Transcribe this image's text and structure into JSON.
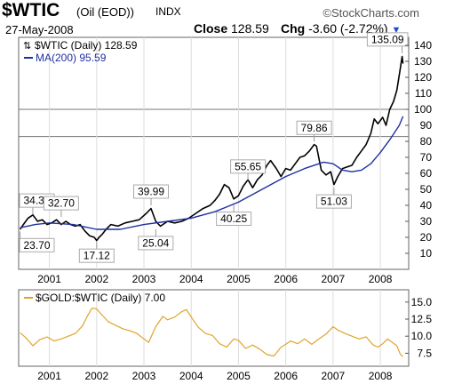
{
  "header": {
    "symbol": "$WTIC",
    "description": "(Oil (EOD))",
    "exchange": "INDX",
    "brand": "StockCharts.com",
    "date": "27-May-2008",
    "close_label": "Close",
    "close_value": "128.59",
    "chg_label": "Chg",
    "chg_value": "-3.60 (-2.72%)",
    "chg_arrow": "▼",
    "down_color": "#1a4ec8"
  },
  "chart_data": [
    {
      "type": "line",
      "legend": [
        {
          "label": "$WTIC (Daily) 128.59",
          "color": "#000000"
        },
        {
          "label": "MA(200) 95.59",
          "color": "#1f2f9f"
        }
      ],
      "x_tick_labels": [
        "2001",
        "2002",
        "2003",
        "2004",
        "2005",
        "2006",
        "2007",
        "2008"
      ],
      "y_tick_labels": [
        "10",
        "20",
        "30",
        "40",
        "50",
        "60",
        "70",
        "80",
        "90",
        "100",
        "110",
        "120",
        "130",
        "140"
      ],
      "y_ticks": [
        10,
        20,
        30,
        40,
        50,
        60,
        70,
        80,
        90,
        100,
        110,
        120,
        130,
        140
      ],
      "ylim": [
        0,
        145
      ],
      "xlim": [
        2000.35,
        2008.6
      ],
      "x_tick_values": [
        2001,
        2002,
        2003,
        2004,
        2005,
        2006,
        2007,
        2008
      ],
      "horizontal_lines": [
        100,
        83
      ],
      "series": [
        {
          "name": "$WTIC (Daily)",
          "color": "#000000",
          "points": [
            [
              2000.38,
              25
            ],
            [
              2000.45,
              28
            ],
            [
              2000.55,
              32
            ],
            [
              2000.65,
              34
            ],
            [
              2000.75,
              30
            ],
            [
              2000.85,
              31
            ],
            [
              2000.95,
              28
            ],
            [
              2001.05,
              29
            ],
            [
              2001.15,
              31
            ],
            [
              2001.25,
              28
            ],
            [
              2001.35,
              30
            ],
            [
              2001.45,
              28
            ],
            [
              2001.55,
              27
            ],
            [
              2001.65,
              28
            ],
            [
              2001.75,
              24
            ],
            [
              2001.85,
              21
            ],
            [
              2001.95,
              20
            ],
            [
              2002.0,
              18
            ],
            [
              2002.05,
              20
            ],
            [
              2002.12,
              22
            ],
            [
              2002.2,
              25
            ],
            [
              2002.3,
              28
            ],
            [
              2002.45,
              27
            ],
            [
              2002.6,
              29
            ],
            [
              2002.75,
              30
            ],
            [
              2002.9,
              31
            ],
            [
              2003.05,
              35
            ],
            [
              2003.15,
              38
            ],
            [
              2003.25,
              30
            ],
            [
              2003.35,
              27
            ],
            [
              2003.5,
              30
            ],
            [
              2003.65,
              29
            ],
            [
              2003.8,
              30
            ],
            [
              2003.95,
              32
            ],
            [
              2004.1,
              35
            ],
            [
              2004.25,
              38
            ],
            [
              2004.4,
              40
            ],
            [
              2004.5,
              43
            ],
            [
              2004.6,
              47
            ],
            [
              2004.7,
              53
            ],
            [
              2004.8,
              51
            ],
            [
              2004.9,
              44
            ],
            [
              2005.0,
              46
            ],
            [
              2005.1,
              52
            ],
            [
              2005.2,
              56
            ],
            [
              2005.3,
              51
            ],
            [
              2005.4,
              56
            ],
            [
              2005.5,
              59
            ],
            [
              2005.6,
              65
            ],
            [
              2005.68,
              68
            ],
            [
              2005.8,
              63
            ],
            [
              2005.9,
              58
            ],
            [
              2006.0,
              63
            ],
            [
              2006.1,
              62
            ],
            [
              2006.2,
              66
            ],
            [
              2006.3,
              70
            ],
            [
              2006.4,
              71
            ],
            [
              2006.5,
              74
            ],
            [
              2006.6,
              78
            ],
            [
              2006.65,
              77
            ],
            [
              2006.75,
              62
            ],
            [
              2006.85,
              59
            ],
            [
              2006.95,
              61
            ],
            [
              2007.02,
              53
            ],
            [
              2007.1,
              58
            ],
            [
              2007.2,
              63
            ],
            [
              2007.3,
              64
            ],
            [
              2007.4,
              65
            ],
            [
              2007.5,
              70
            ],
            [
              2007.6,
              74
            ],
            [
              2007.7,
              78
            ],
            [
              2007.8,
              85
            ],
            [
              2007.87,
              94
            ],
            [
              2007.95,
              91
            ],
            [
              2008.05,
              95
            ],
            [
              2008.12,
              90
            ],
            [
              2008.2,
              100
            ],
            [
              2008.28,
              105
            ],
            [
              2008.35,
              112
            ],
            [
              2008.42,
              125
            ],
            [
              2008.46,
              133
            ],
            [
              2008.48,
              128.59
            ]
          ]
        },
        {
          "name": "MA(200)",
          "color": "#1f2f9f",
          "points": [
            [
              2000.38,
              26
            ],
            [
              2000.7,
              28
            ],
            [
              2001.0,
              29
            ],
            [
              2001.5,
              28
            ],
            [
              2002.0,
              25
            ],
            [
              2002.5,
              25
            ],
            [
              2003.0,
              28
            ],
            [
              2003.5,
              30
            ],
            [
              2004.0,
              32
            ],
            [
              2004.5,
              36
            ],
            [
              2005.0,
              42
            ],
            [
              2005.5,
              50
            ],
            [
              2006.0,
              58
            ],
            [
              2006.4,
              63
            ],
            [
              2006.8,
              67
            ],
            [
              2007.0,
              66
            ],
            [
              2007.2,
              62
            ],
            [
              2007.4,
              61
            ],
            [
              2007.6,
              62
            ],
            [
              2007.8,
              66
            ],
            [
              2008.0,
              73
            ],
            [
              2008.2,
              81
            ],
            [
              2008.4,
              90
            ],
            [
              2008.48,
              95.59
            ]
          ]
        }
      ],
      "annotations": [
        {
          "label": "34.37",
          "x": 2000.65,
          "y": 34.37
        },
        {
          "label": "32.70",
          "x": 2001.25,
          "y": 32.7
        },
        {
          "label": "23.70",
          "x": 2000.38,
          "y": 23.7
        },
        {
          "label": "17.12",
          "x": 2002.0,
          "y": 17.12
        },
        {
          "label": "39.99",
          "x": 2003.15,
          "y": 39.99
        },
        {
          "label": "25.04",
          "x": 2003.25,
          "y": 25.04
        },
        {
          "label": "55.65",
          "x": 2005.2,
          "y": 55.65
        },
        {
          "label": "40.25",
          "x": 2004.9,
          "y": 40.25
        },
        {
          "label": "79.86",
          "x": 2006.6,
          "y": 79.86
        },
        {
          "label": "51.03",
          "x": 2007.02,
          "y": 51.03
        },
        {
          "label": "135.09",
          "x": 2008.46,
          "y": 135.09
        }
      ]
    },
    {
      "type": "line",
      "legend": [
        {
          "label": "$GOLD:$WTIC (Daily) 7.00",
          "color": "#e0a42c"
        }
      ],
      "x_tick_labels": [
        "2001",
        "2002",
        "2003",
        "2004",
        "2005",
        "2006",
        "2007",
        "2008"
      ],
      "x_tick_values": [
        2001,
        2002,
        2003,
        2004,
        2005,
        2006,
        2007,
        2008
      ],
      "y_tick_labels": [
        "7.5",
        "10.0",
        "12.5",
        "15.0"
      ],
      "y_ticks": [
        7.5,
        10.0,
        12.5,
        15.0
      ],
      "ylim": [
        5.6,
        16.8
      ],
      "xlim": [
        2000.35,
        2008.6
      ],
      "series": [
        {
          "name": "$GOLD:$WTIC (Daily)",
          "color": "#e0a42c",
          "points": [
            [
              2000.38,
              10.5
            ],
            [
              2000.5,
              9.8
            ],
            [
              2000.65,
              8.6
            ],
            [
              2000.8,
              9.5
            ],
            [
              2000.95,
              9.9
            ],
            [
              2001.1,
              9.3
            ],
            [
              2001.25,
              9.6
            ],
            [
              2001.4,
              10.0
            ],
            [
              2001.55,
              10.4
            ],
            [
              2001.7,
              11.5
            ],
            [
              2001.8,
              12.9
            ],
            [
              2001.9,
              14.1
            ],
            [
              2002.0,
              14.0
            ],
            [
              2002.1,
              13.2
            ],
            [
              2002.25,
              12.1
            ],
            [
              2002.4,
              11.6
            ],
            [
              2002.55,
              11.1
            ],
            [
              2002.7,
              10.8
            ],
            [
              2002.85,
              10.4
            ],
            [
              2003.0,
              9.6
            ],
            [
              2003.1,
              9.1
            ],
            [
              2003.25,
              11.4
            ],
            [
              2003.4,
              12.9
            ],
            [
              2003.5,
              12.4
            ],
            [
              2003.65,
              12.8
            ],
            [
              2003.8,
              13.6
            ],
            [
              2003.9,
              13.9
            ],
            [
              2004.0,
              12.8
            ],
            [
              2004.15,
              11.3
            ],
            [
              2004.3,
              10.4
            ],
            [
              2004.45,
              10.1
            ],
            [
              2004.6,
              8.9
            ],
            [
              2004.75,
              8.4
            ],
            [
              2004.9,
              9.6
            ],
            [
              2005.0,
              9.4
            ],
            [
              2005.15,
              8.2
            ],
            [
              2005.3,
              8.7
            ],
            [
              2005.45,
              8.1
            ],
            [
              2005.6,
              7.3
            ],
            [
              2005.75,
              7.1
            ],
            [
              2005.9,
              8.4
            ],
            [
              2006.0,
              8.8
            ],
            [
              2006.1,
              9.3
            ],
            [
              2006.25,
              8.9
            ],
            [
              2006.4,
              9.6
            ],
            [
              2006.55,
              8.8
            ],
            [
              2006.7,
              9.6
            ],
            [
              2006.85,
              10.3
            ],
            [
              2007.0,
              11.4
            ],
            [
              2007.1,
              10.9
            ],
            [
              2007.25,
              10.4
            ],
            [
              2007.4,
              10.0
            ],
            [
              2007.55,
              9.6
            ],
            [
              2007.7,
              9.9
            ],
            [
              2007.85,
              8.7
            ],
            [
              2007.95,
              8.4
            ],
            [
              2008.05,
              8.9
            ],
            [
              2008.15,
              9.6
            ],
            [
              2008.25,
              9.1
            ],
            [
              2008.35,
              8.6
            ],
            [
              2008.42,
              7.4
            ],
            [
              2008.48,
              7.0
            ]
          ]
        }
      ]
    }
  ]
}
